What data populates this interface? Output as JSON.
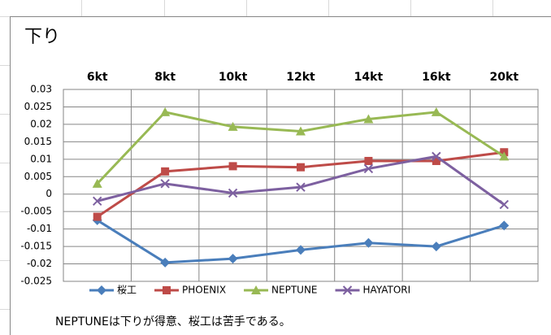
{
  "chart_data": {
    "type": "line",
    "title": "下り",
    "categories": [
      "6kt",
      "8kt",
      "10kt",
      "12kt",
      "14kt",
      "16kt",
      "20kt"
    ],
    "series": [
      {
        "name": "桜工",
        "color": "#4a7ebb",
        "marker": "diamond",
        "values": [
          -0.0075,
          -0.0196,
          -0.0185,
          -0.016,
          -0.014,
          -0.015,
          -0.009
        ]
      },
      {
        "name": "PHOENIX",
        "color": "#be4b48",
        "marker": "square",
        "values": [
          -0.0065,
          0.0065,
          0.008,
          0.0077,
          0.0095,
          0.0095,
          0.012
        ]
      },
      {
        "name": "NEPTUNE",
        "color": "#98b954",
        "marker": "triangle",
        "values": [
          0.003,
          0.0235,
          0.0193,
          0.018,
          0.0215,
          0.0235,
          0.0108
        ]
      },
      {
        "name": "HAYATORI",
        "color": "#7d60a0",
        "marker": "x",
        "values": [
          -0.002,
          0.003,
          0.0003,
          0.002,
          0.0073,
          0.0108,
          -0.003
        ]
      }
    ],
    "ylim": [
      -0.025,
      0.03
    ],
    "yticks": [
      0.03,
      0.025,
      0.02,
      0.015,
      0.01,
      0.005,
      0,
      -0.005,
      -0.01,
      -0.015,
      -0.02,
      -0.025
    ],
    "grid": true,
    "legend": "bottom",
    "annotation": "NEPTUNEは下りが得意、桜工は苦手である。"
  }
}
